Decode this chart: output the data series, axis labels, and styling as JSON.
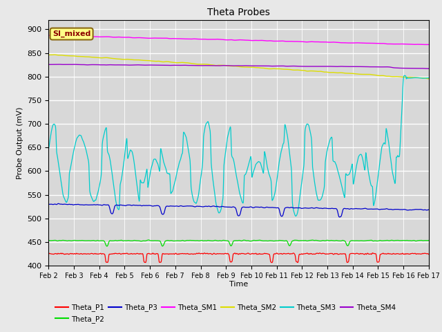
{
  "title": "Theta Probes",
  "xlabel": "Time",
  "ylabel": "Probe Output (mV)",
  "annotation_text": "SI_mixed",
  "ylim": [
    400,
    920
  ],
  "yticks": [
    400,
    450,
    500,
    550,
    600,
    650,
    700,
    750,
    800,
    850,
    900
  ],
  "x_tick_labels": [
    "Feb 2",
    "Feb 3",
    "Feb 4",
    "Feb 5",
    "Feb 6",
    "Feb 7",
    "Feb 8",
    "Feb 9",
    "Feb 10",
    "Feb 11",
    "Feb 12",
    "Feb 13",
    "Feb 14",
    "Feb 15",
    "Feb 16",
    "Feb 17"
  ],
  "colors": {
    "Theta_P1": "#ff0000",
    "Theta_P2": "#00dd00",
    "Theta_P3": "#0000cc",
    "Theta_SM1": "#ff00ff",
    "Theta_SM2": "#dddd00",
    "Theta_SM3": "#00cccc",
    "Theta_SM4": "#9900cc"
  },
  "bg_color": "#d8d8d8",
  "fig_color": "#e8e8e8",
  "grid_color": "#ffffff"
}
